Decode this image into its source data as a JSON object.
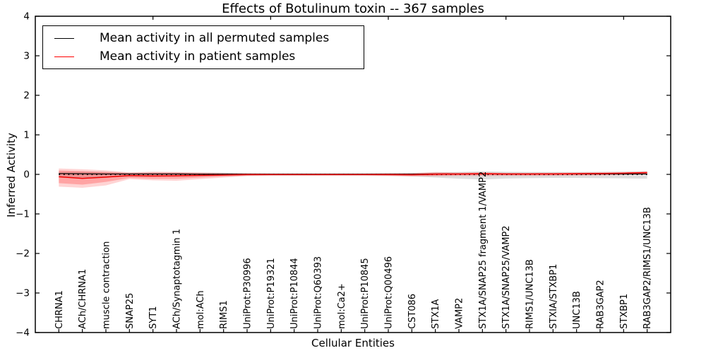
{
  "figure": {
    "title": "Effects of Botulinum toxin -- 367 samples"
  },
  "chart_data": {
    "type": "line",
    "title": "Effects of Botulinum toxin -- 367 samples",
    "xlabel": "Cellular Entities",
    "ylabel": "Inferred Activity",
    "ylim": [
      -4,
      4
    ],
    "grid": false,
    "legend_position": "upper left",
    "y_ticks": [
      "4",
      "3",
      "2",
      "1",
      "0",
      "−1",
      "−2",
      "−3",
      "−4"
    ],
    "y_tick_values": [
      4,
      3,
      2,
      1,
      0,
      -1,
      -2,
      -3,
      -4
    ],
    "top_tick_data_coords": [
      5,
      10,
      15,
      20,
      25
    ],
    "categories": [
      "CHRNA1",
      "ACh/CHRNA1",
      "muscle contraction",
      "SNAP25",
      "SYT1",
      "ACh/Synaptotagmin 1",
      "mol:ACh",
      "RIMS1",
      "UniProt:P30996",
      "UniProt:P19321",
      "UniProt:P10844",
      "UniProt:Q60393",
      "mol:Ca2+",
      "UniProt:P10845",
      "UniProt:Q00496",
      "CST086",
      "STX1A",
      "VAMP2",
      "STX1A/SNAP25 fragment 1/VAMP2",
      "STX1A/SNAP25/VAMP2",
      "RIMS1/UNC13B",
      "STXIA/STXBP1",
      "UNC13B",
      "RAB3GAP2",
      "STXBP1",
      "RAB3GAP2/RIMS1/UNC13B"
    ],
    "legend": [
      {
        "label": "Mean activity in all permuted samples",
        "color": "#000000"
      },
      {
        "label": "Mean activity in patient samples",
        "color": "#ff0000"
      }
    ],
    "reference_line": {
      "value": 0,
      "style": "dotted",
      "color": "#000000"
    },
    "series": [
      {
        "name": "Mean activity in all permuted samples",
        "style": "solid",
        "color": "#000000",
        "values": [
          0.02,
          0.015,
          0.01,
          0.01,
          0.01,
          0.01,
          0.005,
          0.005,
          0.005,
          0.005,
          0.005,
          0.005,
          0.005,
          0.005,
          0.005,
          0.005,
          0.01,
          0.01,
          0.01,
          0.01,
          0.01,
          0.01,
          0.01,
          0.01,
          0.01,
          0.01
        ]
      },
      {
        "name": "Mean activity in patient samples",
        "style": "solid",
        "color": "#f10000",
        "values": [
          -0.06,
          -0.1,
          -0.07,
          -0.03,
          -0.04,
          -0.035,
          -0.025,
          -0.015,
          -0.005,
          -0.005,
          -0.005,
          -0.005,
          -0.005,
          -0.005,
          -0.005,
          -0.01,
          0.005,
          0.01,
          0.015,
          0.01,
          0.01,
          0.012,
          0.015,
          0.02,
          0.03,
          0.045
        ]
      }
    ],
    "bands": [
      {
        "name": "permuted-samples-spread",
        "color": "rgba(0,0,0,0.13)",
        "upper": [
          0.07,
          0.07,
          0.06,
          0.05,
          0.05,
          0.05,
          0.045,
          0.04,
          0.035,
          0.03,
          0.03,
          0.03,
          0.03,
          0.03,
          0.035,
          0.04,
          0.05,
          0.06,
          0.075,
          0.065,
          0.06,
          0.06,
          0.06,
          0.065,
          0.07,
          0.08
        ],
        "lower": [
          -0.08,
          -0.08,
          -0.07,
          -0.06,
          -0.06,
          -0.055,
          -0.05,
          -0.045,
          -0.04,
          -0.035,
          -0.035,
          -0.035,
          -0.035,
          -0.035,
          -0.04,
          -0.05,
          -0.08,
          -0.11,
          -0.13,
          -0.105,
          -0.095,
          -0.09,
          -0.09,
          -0.095,
          -0.1,
          -0.11
        ]
      },
      {
        "name": "patient-samples-spread-outer",
        "color": "rgba(255,40,40,0.2)",
        "upper": [
          0.15,
          0.13,
          0.1,
          0.05,
          0.07,
          0.06,
          0.05,
          0.04,
          0.025,
          0.02,
          0.02,
          0.02,
          0.02,
          0.02,
          0.025,
          0.03,
          0.06,
          0.05,
          0.055,
          0.04,
          0.04,
          0.045,
          0.05,
          0.055,
          0.06,
          0.075
        ],
        "lower": [
          -0.31,
          -0.34,
          -0.28,
          -0.12,
          -0.15,
          -0.16,
          -0.12,
          -0.08,
          -0.04,
          -0.03,
          -0.03,
          -0.03,
          -0.03,
          -0.03,
          -0.04,
          -0.05,
          -0.05,
          -0.04,
          -0.045,
          -0.04,
          -0.04,
          -0.04,
          -0.035,
          -0.03,
          -0.02,
          0.0
        ]
      },
      {
        "name": "patient-samples-spread-inner",
        "color": "rgba(255,40,40,0.28)",
        "upper": [
          0.1,
          0.08,
          0.06,
          0.03,
          0.04,
          0.04,
          0.03,
          0.02,
          0.015,
          0.01,
          0.01,
          0.01,
          0.01,
          0.01,
          0.015,
          0.02,
          0.04,
          0.03,
          0.04,
          0.03,
          0.03,
          0.03,
          0.035,
          0.04,
          0.045,
          0.06
        ],
        "lower": [
          -0.22,
          -0.26,
          -0.19,
          -0.09,
          -0.11,
          -0.11,
          -0.08,
          -0.05,
          -0.03,
          -0.02,
          -0.02,
          -0.02,
          -0.02,
          -0.02,
          -0.03,
          -0.04,
          -0.03,
          -0.02,
          -0.02,
          -0.02,
          -0.02,
          -0.02,
          -0.015,
          -0.01,
          0.0,
          0.02
        ]
      }
    ]
  }
}
